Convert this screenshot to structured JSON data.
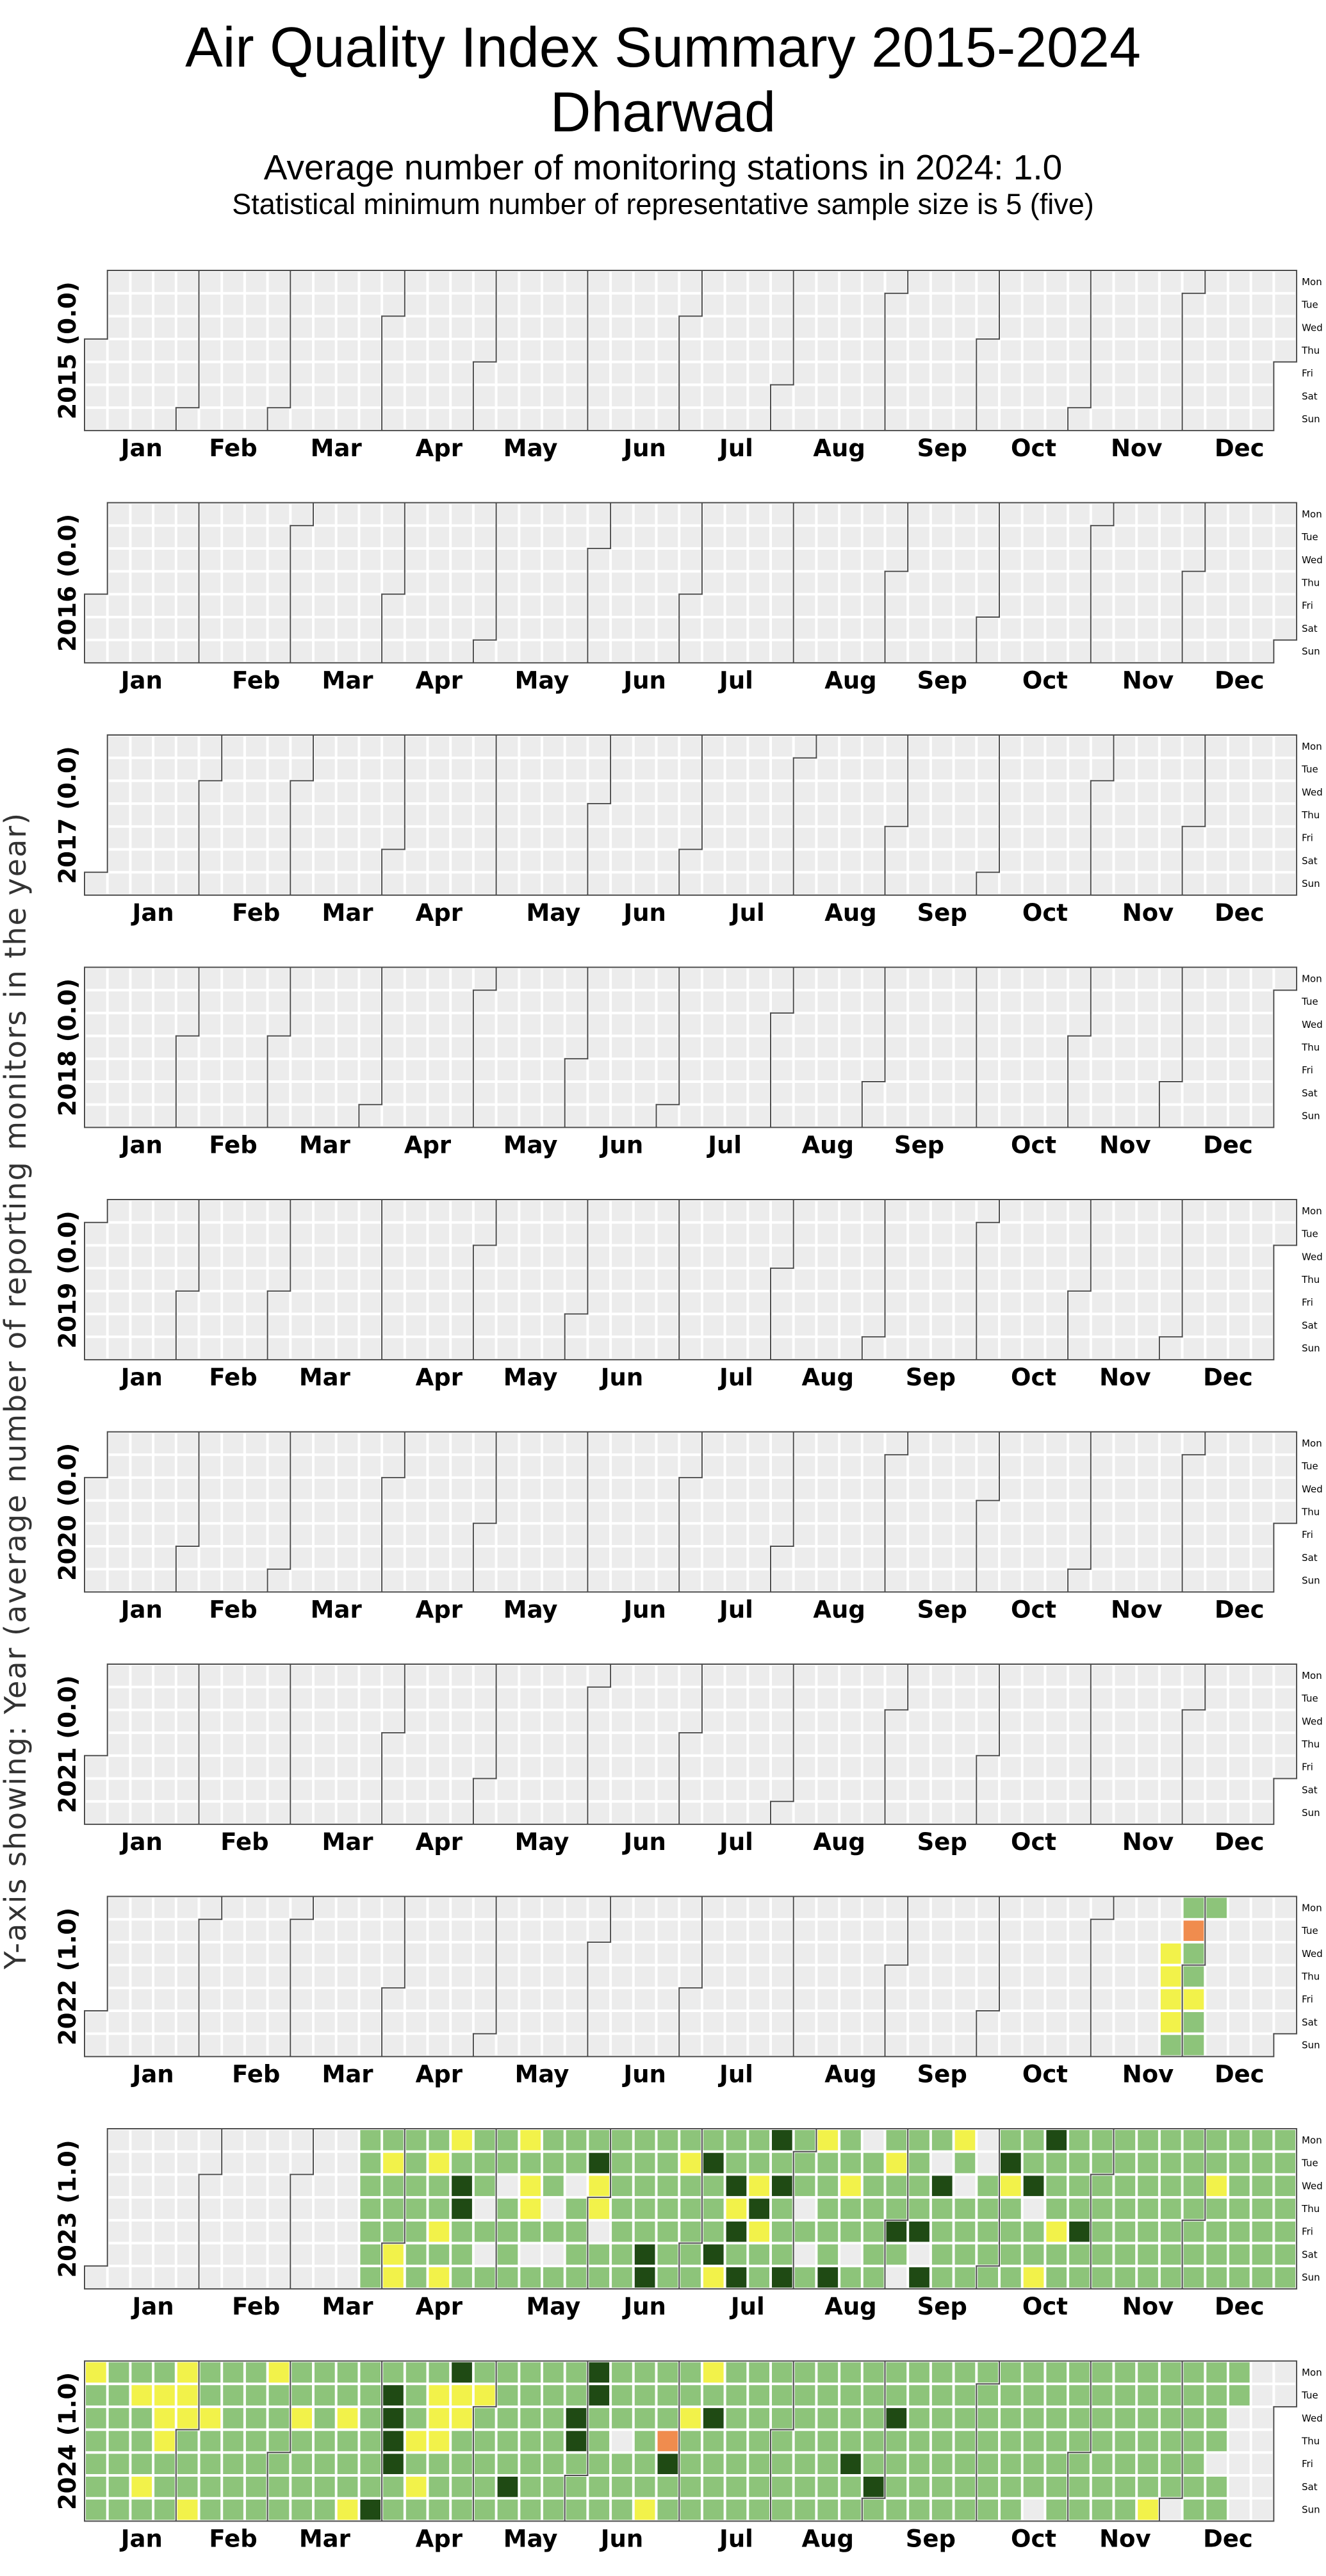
{
  "title": "Air Quality Index Summary 2015-2024",
  "city": "Dharwad",
  "subtitle1": "Average number of monitoring stations in 2024: 1.0",
  "subtitle2": "Statistical minimum number of representative sample size is 5 (five)",
  "ylabel": "Y-axis showing: Year (average number of reporting monitors in the year)",
  "months": [
    "Jan",
    "Feb",
    "Mar",
    "Apr",
    "May",
    "Jun",
    "Jul",
    "Aug",
    "Sep",
    "Oct",
    "Nov",
    "Dec"
  ],
  "weekdays": [
    "Mon",
    "Tue",
    "Wed",
    "Thu",
    "Fri",
    "Sat",
    "Sun"
  ],
  "colors": {
    "no_data": "#ececec",
    "1": "#8dc47a",
    "2": "#f2f24a",
    "3": "#f08c4e",
    "4": "#1f4a14",
    "grid": "#ffffff",
    "border": "#4d4d4d"
  },
  "chart_data": {
    "type": "heatmap",
    "kind": "calendar",
    "category_codes": {
      "0": "no data",
      "1": "light green",
      "2": "yellow",
      "3": "orange",
      "4": "dark green"
    },
    "years": [
      {
        "year": 2015,
        "label": "2015 (0.0)",
        "data_start": null,
        "data": ""
      },
      {
        "year": 2016,
        "label": "2016 (0.0)",
        "data_start": null,
        "data": ""
      },
      {
        "year": 2017,
        "label": "2017 (0.0)",
        "data_start": null,
        "data": ""
      },
      {
        "year": 2018,
        "label": "2018 (0.0)",
        "data_start": null,
        "data": ""
      },
      {
        "year": 2019,
        "label": "2019 (0.0)",
        "data_start": null,
        "data": ""
      },
      {
        "year": 2020,
        "label": "2020 (0.0)",
        "data_start": null,
        "data": ""
      },
      {
        "year": 2021,
        "label": "2021 (0.0)",
        "data_start": null,
        "data": ""
      },
      {
        "year": 2022,
        "label": "2022 (1.0)",
        "data_start": "2022-11-23",
        "data": "2222113112111"
      },
      {
        "year": 2023,
        "label": "2023 (1.0)",
        "data_start": "2023-03-20",
        "data": "1111111121112211111111211212214411111101011101111212210111101011101111142201111111111111144111111112111111411142114241411242114141114111010121111141121101011111112114101111404104111121011110011111142111111401124111211111141111111111111111111111111111111111111112111111111111111111111111111112111111112111111111112111111"
      },
      {
        "year": 2024,
        "label": "2024 (1.0)",
        "data_start": "2024-01-01",
        "data": "2111111111111112111211222111222111211211111111111111111121111111121111111111111211121111114144441111121211222111422111112111111111141111111111111111144111441111111101111111112111341111211112141111111111111111111111111111111111111111111411111114111411111111111111111111111111111111111111111111101111111111111111111111111111111111211111101111111111101111"
      }
    ]
  }
}
